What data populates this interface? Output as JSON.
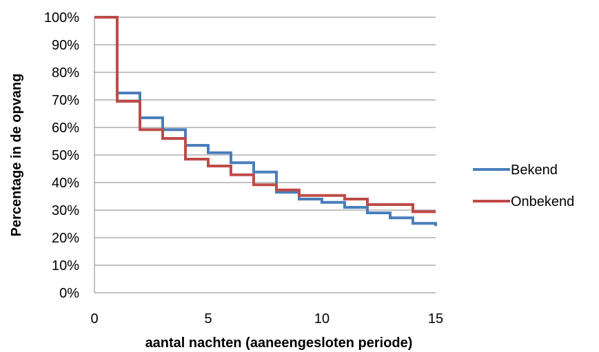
{
  "chart_data": {
    "type": "line",
    "step": true,
    "title": "",
    "xlabel": "aantal nachten (aaneengesloten periode)",
    "ylabel": "Percentage in de opvang",
    "xlim": [
      0,
      15
    ],
    "ylim": [
      0,
      100
    ],
    "x_ticks": [
      0,
      5,
      10,
      15
    ],
    "y_ticks": [
      "0%",
      "10%",
      "20%",
      "30%",
      "40%",
      "50%",
      "60%",
      "70%",
      "80%",
      "90%",
      "100%"
    ],
    "grid": "horizontal",
    "legend_position": "right",
    "series": [
      {
        "name": "Bekend",
        "color": "#4a7ebb",
        "x": [
          0,
          1,
          2,
          3,
          4,
          5,
          6,
          7,
          8,
          9,
          10,
          11,
          12,
          13,
          14,
          15
        ],
        "values": [
          100,
          72.5,
          63.5,
          59.2,
          53.5,
          50.8,
          47.2,
          43.8,
          36.5,
          34.0,
          32.8,
          31.0,
          29.0,
          27.2,
          25.2,
          24.2
        ]
      },
      {
        "name": "Onbekend",
        "color": "#be4b48",
        "x": [
          0,
          1,
          2,
          3,
          4,
          5,
          6,
          7,
          8,
          9,
          10,
          11,
          12,
          13,
          14,
          15
        ],
        "values": [
          100,
          69.5,
          59.2,
          56.0,
          48.5,
          46.0,
          42.8,
          39.2,
          37.3,
          35.3,
          35.3,
          34.0,
          32.0,
          32.0,
          29.4,
          29.4
        ]
      }
    ]
  }
}
